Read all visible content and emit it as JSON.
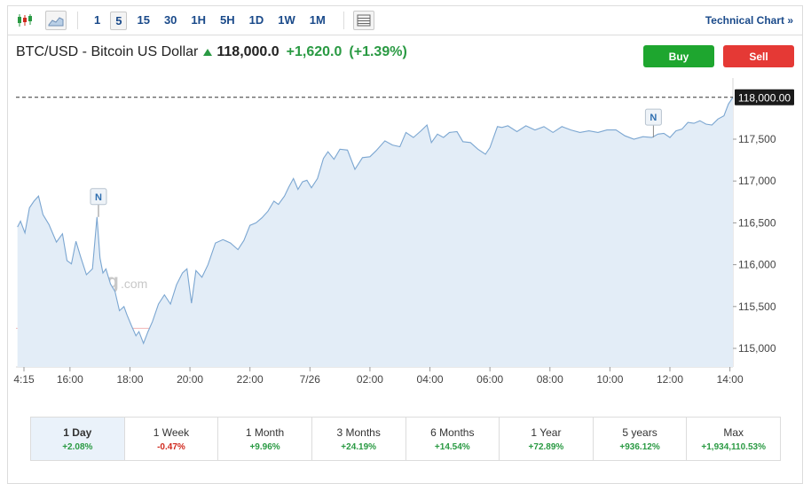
{
  "toolbar": {
    "timeframes": [
      "1",
      "5",
      "15",
      "30",
      "1H",
      "5H",
      "1D",
      "1W",
      "1M"
    ],
    "active_timeframe": "5",
    "technical_link": "Technical Chart »",
    "icons": [
      "candlestick-icon",
      "area-chart-icon",
      "table-icon"
    ]
  },
  "header": {
    "symbol": "BTC/USD - Bitcoin US Dollar",
    "price": "118,000.0",
    "change": "+1,620.0",
    "change_pct": "(+1.39%)"
  },
  "buttons": {
    "buy": "Buy",
    "sell": "Sell"
  },
  "watermark": {
    "brand": "Investing",
    "suffix": ".com"
  },
  "chart_data": {
    "type": "area",
    "y_ticks": [
      "118,000.00",
      "117,500",
      "117,000",
      "116,500",
      "116,000",
      "115,500",
      "115,000"
    ],
    "x_ticks": [
      "4:15",
      "16:00",
      "18:00",
      "20:00",
      "22:00",
      "7/26",
      "02:00",
      "04:00",
      "06:00",
      "08:00",
      "10:00",
      "12:00",
      "14:00"
    ],
    "current_price_label": "118,000.00",
    "current_price": 118000,
    "reference_price": 115240,
    "ylim": [
      114800,
      118550
    ],
    "news_markers": [
      {
        "label": "N",
        "hour": 16.95
      },
      {
        "label": "N",
        "hour": 35.45
      }
    ],
    "series": [
      {
        "x": [
          14.25,
          14.35,
          14.5,
          14.65,
          14.8,
          14.95,
          15.1,
          15.3,
          15.55,
          15.75,
          15.9,
          16.05,
          16.2,
          16.35,
          16.55,
          16.75,
          16.9,
          17.0,
          17.1,
          17.2,
          17.35,
          17.5,
          17.65,
          17.8,
          17.9,
          18.05,
          18.2,
          18.3,
          18.45,
          18.6,
          18.75,
          18.95,
          19.15,
          19.35,
          19.55,
          19.75,
          19.9,
          20.05,
          20.2,
          20.4,
          20.6,
          20.85,
          21.1,
          21.35,
          21.6,
          21.8,
          22.0,
          22.2,
          22.4,
          22.6,
          22.8,
          22.95,
          23.15,
          23.3,
          23.45,
          23.6,
          23.75,
          23.9,
          24.05,
          24.25,
          24.45,
          24.6,
          24.8,
          25.0,
          25.25,
          25.5,
          25.75,
          26.0,
          26.2,
          26.5,
          26.75,
          27.0,
          27.2,
          27.45,
          27.7,
          27.9,
          28.05,
          28.25,
          28.45,
          28.65,
          28.9,
          29.1,
          29.35,
          29.6,
          29.85,
          30.0,
          30.15,
          30.25,
          30.4,
          30.6,
          30.9,
          31.2,
          31.5,
          31.8,
          32.1,
          32.4,
          32.7,
          33.0,
          33.3,
          33.6,
          33.9,
          34.2,
          34.5,
          34.8,
          35.1,
          35.4,
          35.6,
          35.8,
          36.0,
          36.2,
          36.4,
          36.6,
          36.8,
          37.0,
          37.2,
          37.4,
          37.6,
          37.8,
          37.95,
          38.1
        ],
        "y": [
          116450,
          116520,
          116380,
          116680,
          116760,
          116820,
          116600,
          116480,
          116270,
          116370,
          116050,
          116010,
          116280,
          116100,
          115880,
          115950,
          116570,
          116080,
          115900,
          115950,
          115770,
          115680,
          115450,
          115500,
          115400,
          115270,
          115150,
          115200,
          115060,
          115200,
          115320,
          115530,
          115640,
          115530,
          115760,
          115900,
          115950,
          115540,
          115930,
          115850,
          116000,
          116260,
          116300,
          116260,
          116180,
          116290,
          116470,
          116500,
          116560,
          116640,
          116760,
          116720,
          116820,
          116930,
          117030,
          116900,
          116990,
          117010,
          116920,
          117030,
          117270,
          117350,
          117260,
          117380,
          117370,
          117140,
          117280,
          117290,
          117360,
          117480,
          117430,
          117410,
          117580,
          117520,
          117600,
          117670,
          117460,
          117560,
          117520,
          117580,
          117590,
          117470,
          117460,
          117380,
          117320,
          117400,
          117550,
          117650,
          117640,
          117660,
          117590,
          117660,
          117610,
          117650,
          117580,
          117650,
          117610,
          117580,
          117600,
          117580,
          117610,
          117610,
          117540,
          117500,
          117530,
          117520,
          117560,
          117570,
          117520,
          117600,
          117620,
          117700,
          117690,
          117720,
          117680,
          117670,
          117740,
          117780,
          117920,
          118000
        ]
      }
    ]
  },
  "periods": [
    {
      "label": "1 Day",
      "change": "+2.08%",
      "dir": "up",
      "active": true
    },
    {
      "label": "1 Week",
      "change": "-0.47%",
      "dir": "down",
      "active": false
    },
    {
      "label": "1 Month",
      "change": "+9.96%",
      "dir": "up",
      "active": false
    },
    {
      "label": "3 Months",
      "change": "+24.19%",
      "dir": "up",
      "active": false
    },
    {
      "label": "6 Months",
      "change": "+14.54%",
      "dir": "up",
      "active": false
    },
    {
      "label": "1 Year",
      "change": "+72.89%",
      "dir": "up",
      "active": false
    },
    {
      "label": "5 years",
      "change": "+936.12%",
      "dir": "up",
      "active": false
    },
    {
      "label": "Max",
      "change": "+1,934,110.53%",
      "dir": "up",
      "active": false
    }
  ]
}
